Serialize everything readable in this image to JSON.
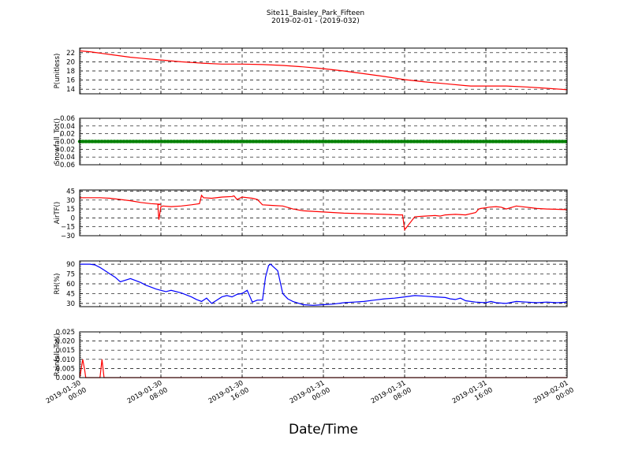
{
  "title": [
    "Site11_Baisley_Park_Fifteen",
    "2019-02-01 - (2019-032)"
  ],
  "xlabel": "Date/Time",
  "chart_data": {
    "type": "line",
    "x_ticks": [
      [
        "2019-01-30",
        "00:00"
      ],
      [
        "2019-01-30",
        "08:00"
      ],
      [
        "2019-01-30",
        "16:00"
      ],
      [
        "2019-01-31",
        "00:00"
      ],
      [
        "2019-01-31",
        "08:00"
      ],
      [
        "2019-01-31",
        "16:00"
      ],
      [
        "2019-02-01",
        "00:00"
      ]
    ],
    "x_range_hours": [
      0,
      48
    ],
    "grid": true,
    "panels": [
      {
        "ylabel": "P(unitless)",
        "ylim": [
          13,
          23
        ],
        "yticks": [
          "14",
          "16",
          "18",
          "20",
          "22"
        ],
        "series": [
          {
            "color": "#ff0000",
            "marker": false,
            "x": [
              0,
              1,
              2,
              3,
              4,
              5,
              6,
              8,
              10,
              12,
              14,
              16,
              18,
              20,
              22,
              24,
              26,
              28,
              30,
              32,
              34,
              36,
              38,
              38.5,
              40,
              42,
              44,
              46,
              48
            ],
            "y": [
              22.4,
              22.2,
              21.9,
              21.6,
              21.3,
              21.0,
              20.8,
              20.4,
              20.0,
              19.7,
              19.5,
              19.5,
              19.4,
              19.2,
              18.9,
              18.5,
              18.0,
              17.4,
              16.8,
              16.1,
              15.6,
              15.2,
              14.8,
              14.7,
              14.7,
              14.7,
              14.5,
              14.2,
              13.9
            ]
          }
        ]
      },
      {
        "ylabel": "Snowfall_Tot()",
        "ylim": [
          -0.06,
          0.06
        ],
        "yticks": [
          "−0.06",
          "−0.04",
          "−0.02",
          "0.00",
          "0.02",
          "0.04",
          "0.06"
        ],
        "series": [
          {
            "color": "#008000",
            "marker": true,
            "x": [
              0,
              48
            ],
            "y": [
              0,
              0
            ]
          }
        ]
      },
      {
        "ylabel": "AirTF()",
        "ylim": [
          -30,
          47
        ],
        "yticks": [
          "−30",
          "−15",
          "0",
          "15",
          "30",
          "45"
        ],
        "series": [
          {
            "color": "#ff0000",
            "marker": false,
            "x": [
              0,
              2,
              3,
              5,
              6,
              7,
              8,
              7.7,
              7.8,
              8.0,
              8.2,
              9,
              10,
              11,
              11.8,
              12,
              12.2,
              13,
              14,
              15,
              15.2,
              15.5,
              16,
              17,
              17.5,
              18,
              19,
              20,
              21,
              22,
              24,
              26,
              28,
              30,
              31.5,
              31.8,
              32,
              33,
              34,
              35,
              35.5,
              36,
              37,
              38,
              39,
              39.3,
              39.5,
              40,
              40.3,
              41,
              41.5,
              42,
              43,
              45,
              46,
              48
            ],
            "y": [
              34,
              34,
              33,
              29,
              26,
              24,
              23,
              22,
              -3,
              19,
              20,
              19,
              20,
              22,
              24,
              38,
              34,
              33,
              35,
              36,
              37,
              31,
              35,
              33,
              31,
              22,
              21,
              20,
              15,
              12,
              10,
              8,
              7,
              6,
              5,
              5,
              -20,
              2,
              3,
              4,
              3,
              5,
              6,
              5,
              9,
              15,
              16,
              17,
              18,
              19,
              18,
              15,
              20,
              16,
              15,
              14
            ]
          }
        ]
      },
      {
        "ylabel": "RH(%)",
        "ylim": [
          25,
          95
        ],
        "yticks": [
          "30",
          "45",
          "60",
          "75",
          "90"
        ],
        "series": [
          {
            "color": "#0000ff",
            "marker": false,
            "x": [
              0,
              1,
              1.5,
              2,
              2.5,
              3,
              3.5,
              4,
              5,
              6,
              6.5,
              7,
              7.5,
              8,
              8.5,
              9,
              10,
              10.5,
              11,
              11.5,
              12,
              12.5,
              13,
              14,
              14.5,
              15,
              15.5,
              16,
              16.5,
              17,
              17.5,
              18,
              18.3,
              18.6,
              18.8,
              19,
              19.5,
              20,
              20.5,
              21,
              22,
              23,
              24,
              25,
              26,
              27,
              28,
              29,
              30,
              31,
              32,
              33,
              34,
              35,
              36,
              36.5,
              37,
              37.5,
              38,
              39,
              40,
              40.5,
              41,
              42,
              43,
              44,
              45,
              46,
              47,
              48
            ],
            "y": [
              90,
              90,
              89,
              85,
              80,
              75,
              70,
              63,
              68,
              62,
              58,
              55,
              52,
              50,
              48,
              50,
              46,
              43,
              40,
              36,
              33,
              38,
              30,
              40,
              42,
              40,
              44,
              45,
              50,
              32,
              35,
              35,
              70,
              88,
              90,
              87,
              80,
              45,
              37,
              33,
              28,
              27,
              28,
              29,
              31,
              32,
              33,
              35,
              37,
              38,
              40,
              42,
              41,
              40,
              39,
              37,
              36,
              38,
              34,
              32,
              31,
              33,
              31,
              30,
              33,
              32,
              31,
              32,
              31,
              32
            ]
          }
        ]
      },
      {
        "ylabel": "Rainfall_Tot()",
        "ylim": [
          0,
          0.025
        ],
        "yticks": [
          "0.000",
          "0.005",
          "0.010",
          "0.015",
          "0.020",
          "0.025"
        ],
        "series": [
          {
            "color": "#ff0000",
            "marker": false,
            "x": [
              0,
              0.1,
              0.3,
              0.5,
              0.6,
              0.7,
              2.0,
              2.2,
              2.4,
              48
            ],
            "y": [
              0,
              0.003,
              0.01,
              0.004,
              0,
              0,
              0,
              0.01,
              0,
              0
            ]
          }
        ]
      }
    ]
  }
}
